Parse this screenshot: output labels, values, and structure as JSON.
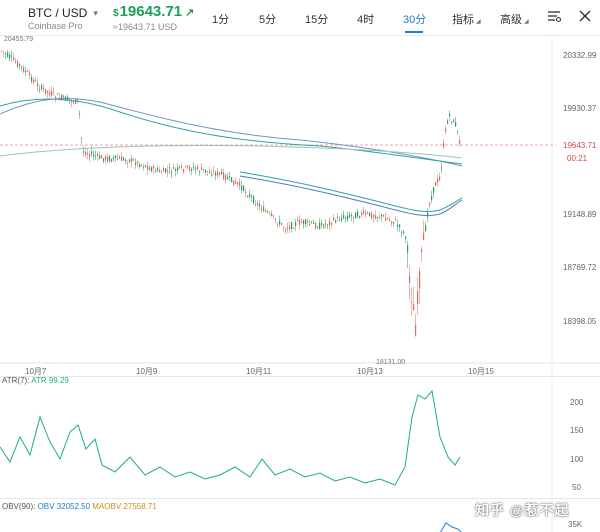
{
  "header": {
    "pair": "BTC / USD",
    "exchange": "Coinbase Pro",
    "price_currency": "$",
    "price_value": "19643.71",
    "sub_price": "≈19643.71 USD",
    "timeframes": [
      "1分",
      "5分",
      "15分",
      "4时",
      "30分"
    ],
    "active_timeframe": "30分",
    "indicator_label": "指标",
    "advanced_label": "高级"
  },
  "main_chart": {
    "price_axis": [
      "20332.99",
      "19930.37",
      "19148.89",
      "18769.72",
      "18398.05"
    ],
    "current_price_label": "19643.71",
    "countdown": "00:21",
    "high_label": "20455.79",
    "low_label": "18131.00",
    "date_labels": [
      "10月7",
      "10月9",
      "10月11",
      "10月13",
      "10月15"
    ]
  },
  "atr": {
    "label": "ATR(7):",
    "value": "ATR 99.29",
    "axis": [
      "200",
      "150",
      "100",
      "50"
    ]
  },
  "obv": {
    "label": "OBV(90):",
    "obv_value": "OBV 32052.50",
    "maobv_value": "MAOBV 27558.71",
    "axis_top": "35K"
  },
  "watermark": "知乎 @惹不起",
  "colors": {
    "up": "#1e9e5a",
    "down": "#e06464",
    "accent": "#1f7bd6",
    "ma_blue": "#4a7bbf",
    "ma_teal": "#2fa1a1",
    "atr": "#1eab8f"
  }
}
